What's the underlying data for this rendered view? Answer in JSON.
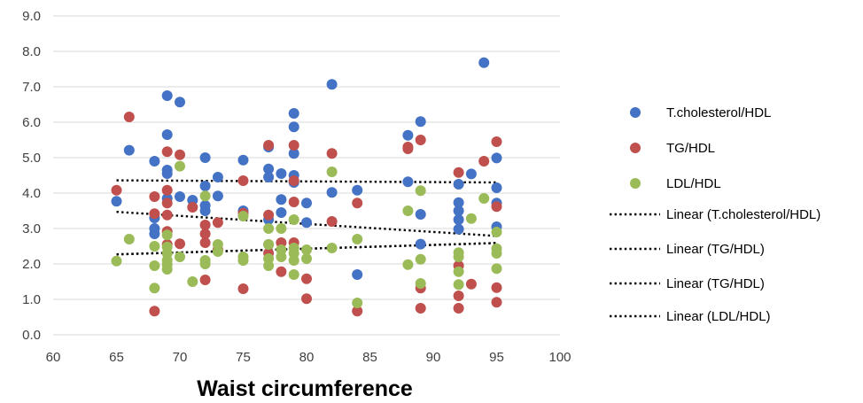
{
  "chart_data": {
    "type": "scatter",
    "title": "",
    "xlabel": "Waist circumference",
    "ylabel": "",
    "xlim": [
      60,
      100
    ],
    "ylim": [
      0,
      9
    ],
    "x_ticks": [
      "60",
      "65",
      "70",
      "75",
      "80",
      "85",
      "90",
      "95",
      "100"
    ],
    "y_ticks": [
      "0.0",
      "1.0",
      "2.0",
      "3.0",
      "4.0",
      "5.0",
      "6.0",
      "7.0",
      "8.0",
      "9.0"
    ],
    "grid": "horizontal",
    "legend_position": "right",
    "series": [
      {
        "name": "T.cholesterol/HDL",
        "color": "#4472C4",
        "points": [
          [
            65,
            3.77
          ],
          [
            66,
            5.21
          ],
          [
            68,
            4.9
          ],
          [
            68,
            3.3
          ],
          [
            68,
            3.0
          ],
          [
            68,
            2.85
          ],
          [
            69,
            6.75
          ],
          [
            69,
            5.65
          ],
          [
            69,
            4.65
          ],
          [
            69,
            4.55
          ],
          [
            69,
            3.85
          ],
          [
            70,
            6.57
          ],
          [
            70,
            3.9
          ],
          [
            71,
            3.8
          ],
          [
            72,
            5.0
          ],
          [
            72,
            4.2
          ],
          [
            72,
            3.65
          ],
          [
            72,
            3.5
          ],
          [
            73,
            4.45
          ],
          [
            73,
            3.92
          ],
          [
            75,
            4.93
          ],
          [
            75,
            3.5
          ],
          [
            77,
            5.3
          ],
          [
            77,
            4.68
          ],
          [
            77,
            4.45
          ],
          [
            77,
            3.25
          ],
          [
            78,
            4.55
          ],
          [
            78,
            3.82
          ],
          [
            78,
            3.45
          ],
          [
            79,
            6.25
          ],
          [
            79,
            5.87
          ],
          [
            79,
            5.12
          ],
          [
            79,
            4.5
          ],
          [
            79,
            4.3
          ],
          [
            80,
            3.72
          ],
          [
            80,
            3.17
          ],
          [
            82,
            7.07
          ],
          [
            82,
            4.02
          ],
          [
            84,
            4.08
          ],
          [
            84,
            1.7
          ],
          [
            88,
            5.63
          ],
          [
            88,
            4.32
          ],
          [
            89,
            6.02
          ],
          [
            89,
            3.4
          ],
          [
            89,
            2.56
          ],
          [
            92,
            4.25
          ],
          [
            92,
            3.73
          ],
          [
            92,
            3.5
          ],
          [
            92,
            3.25
          ],
          [
            92,
            2.98
          ],
          [
            93,
            4.54
          ],
          [
            94,
            7.68
          ],
          [
            95,
            4.99
          ],
          [
            95,
            4.15
          ],
          [
            95,
            3.72
          ],
          [
            95,
            3.05
          ]
        ]
      },
      {
        "name": "TG/HDL",
        "color": "#C0504D",
        "points": [
          [
            65,
            4.08
          ],
          [
            66,
            6.15
          ],
          [
            68,
            3.9
          ],
          [
            68,
            3.42
          ],
          [
            68,
            0.67
          ],
          [
            69,
            5.17
          ],
          [
            69,
            4.08
          ],
          [
            69,
            3.72
          ],
          [
            69,
            3.38
          ],
          [
            69,
            2.92
          ],
          [
            69,
            2.55
          ],
          [
            70,
            5.08
          ],
          [
            70,
            2.57
          ],
          [
            71,
            3.6
          ],
          [
            72,
            3.1
          ],
          [
            72,
            2.85
          ],
          [
            72,
            2.6
          ],
          [
            72,
            1.55
          ],
          [
            73,
            3.17
          ],
          [
            73,
            2.4
          ],
          [
            75,
            4.35
          ],
          [
            75,
            3.43
          ],
          [
            75,
            1.3
          ],
          [
            77,
            5.35
          ],
          [
            77,
            3.38
          ],
          [
            77,
            2.55
          ],
          [
            77,
            2.3
          ],
          [
            78,
            2.6
          ],
          [
            78,
            1.78
          ],
          [
            79,
            5.35
          ],
          [
            79,
            4.35
          ],
          [
            79,
            3.75
          ],
          [
            79,
            2.6
          ],
          [
            80,
            1.58
          ],
          [
            80,
            1.02
          ],
          [
            82,
            5.12
          ],
          [
            82,
            3.2
          ],
          [
            84,
            3.72
          ],
          [
            84,
            0.67
          ],
          [
            88,
            5.3
          ],
          [
            88,
            5.25
          ],
          [
            89,
            5.5
          ],
          [
            89,
            1.32
          ],
          [
            89,
            0.75
          ],
          [
            92,
            4.58
          ],
          [
            92,
            1.95
          ],
          [
            92,
            1.1
          ],
          [
            92,
            0.75
          ],
          [
            93,
            1.43
          ],
          [
            94,
            4.9
          ],
          [
            95,
            5.45
          ],
          [
            95,
            3.62
          ],
          [
            95,
            1.33
          ],
          [
            95,
            0.92
          ]
        ]
      },
      {
        "name": "LDL/HDL",
        "color": "#9BBB59",
        "points": [
          [
            65,
            2.08
          ],
          [
            66,
            2.7
          ],
          [
            68,
            2.5
          ],
          [
            68,
            1.95
          ],
          [
            68,
            1.32
          ],
          [
            69,
            2.82
          ],
          [
            69,
            2.48
          ],
          [
            69,
            2.3
          ],
          [
            69,
            2.1
          ],
          [
            69,
            1.98
          ],
          [
            69,
            1.85
          ],
          [
            70,
            4.76
          ],
          [
            70,
            2.2
          ],
          [
            71,
            1.5
          ],
          [
            72,
            3.92
          ],
          [
            72,
            2.1
          ],
          [
            72,
            2.0
          ],
          [
            73,
            2.55
          ],
          [
            73,
            2.35
          ],
          [
            75,
            3.35
          ],
          [
            75,
            2.2
          ],
          [
            75,
            2.1
          ],
          [
            77,
            3.0
          ],
          [
            77,
            2.55
          ],
          [
            77,
            2.15
          ],
          [
            77,
            1.95
          ],
          [
            78,
            3.0
          ],
          [
            78,
            2.4
          ],
          [
            78,
            2.2
          ],
          [
            79,
            3.25
          ],
          [
            79,
            2.45
          ],
          [
            79,
            2.3
          ],
          [
            79,
            2.1
          ],
          [
            79,
            1.7
          ],
          [
            80,
            2.4
          ],
          [
            80,
            2.15
          ],
          [
            82,
            4.6
          ],
          [
            82,
            2.45
          ],
          [
            84,
            2.7
          ],
          [
            84,
            0.9
          ],
          [
            88,
            3.5
          ],
          [
            88,
            1.98
          ],
          [
            89,
            4.07
          ],
          [
            89,
            2.13
          ],
          [
            89,
            1.45
          ],
          [
            92,
            2.32
          ],
          [
            92,
            2.2
          ],
          [
            92,
            1.78
          ],
          [
            92,
            1.42
          ],
          [
            93,
            3.28
          ],
          [
            94,
            3.85
          ],
          [
            95,
            2.9
          ],
          [
            95,
            2.43
          ],
          [
            95,
            2.3
          ],
          [
            95,
            1.87
          ]
        ]
      }
    ],
    "trendlines": [
      {
        "name": "Linear (T.cholesterol/HDL)",
        "x": [
          65,
          95
        ],
        "y": [
          4.36,
          4.3
        ]
      },
      {
        "name": "Linear (TG/HDL)",
        "x": [
          65,
          95
        ],
        "y": [
          3.47,
          2.79
        ]
      },
      {
        "name": "Linear (TG/HDL)",
        "x": [
          65,
          95
        ],
        "y": [
          2.27,
          2.59
        ]
      },
      {
        "name": "Linear (LDL/HDL)",
        "x": [
          65,
          95
        ],
        "y": [
          2.27,
          2.59
        ]
      }
    ]
  }
}
